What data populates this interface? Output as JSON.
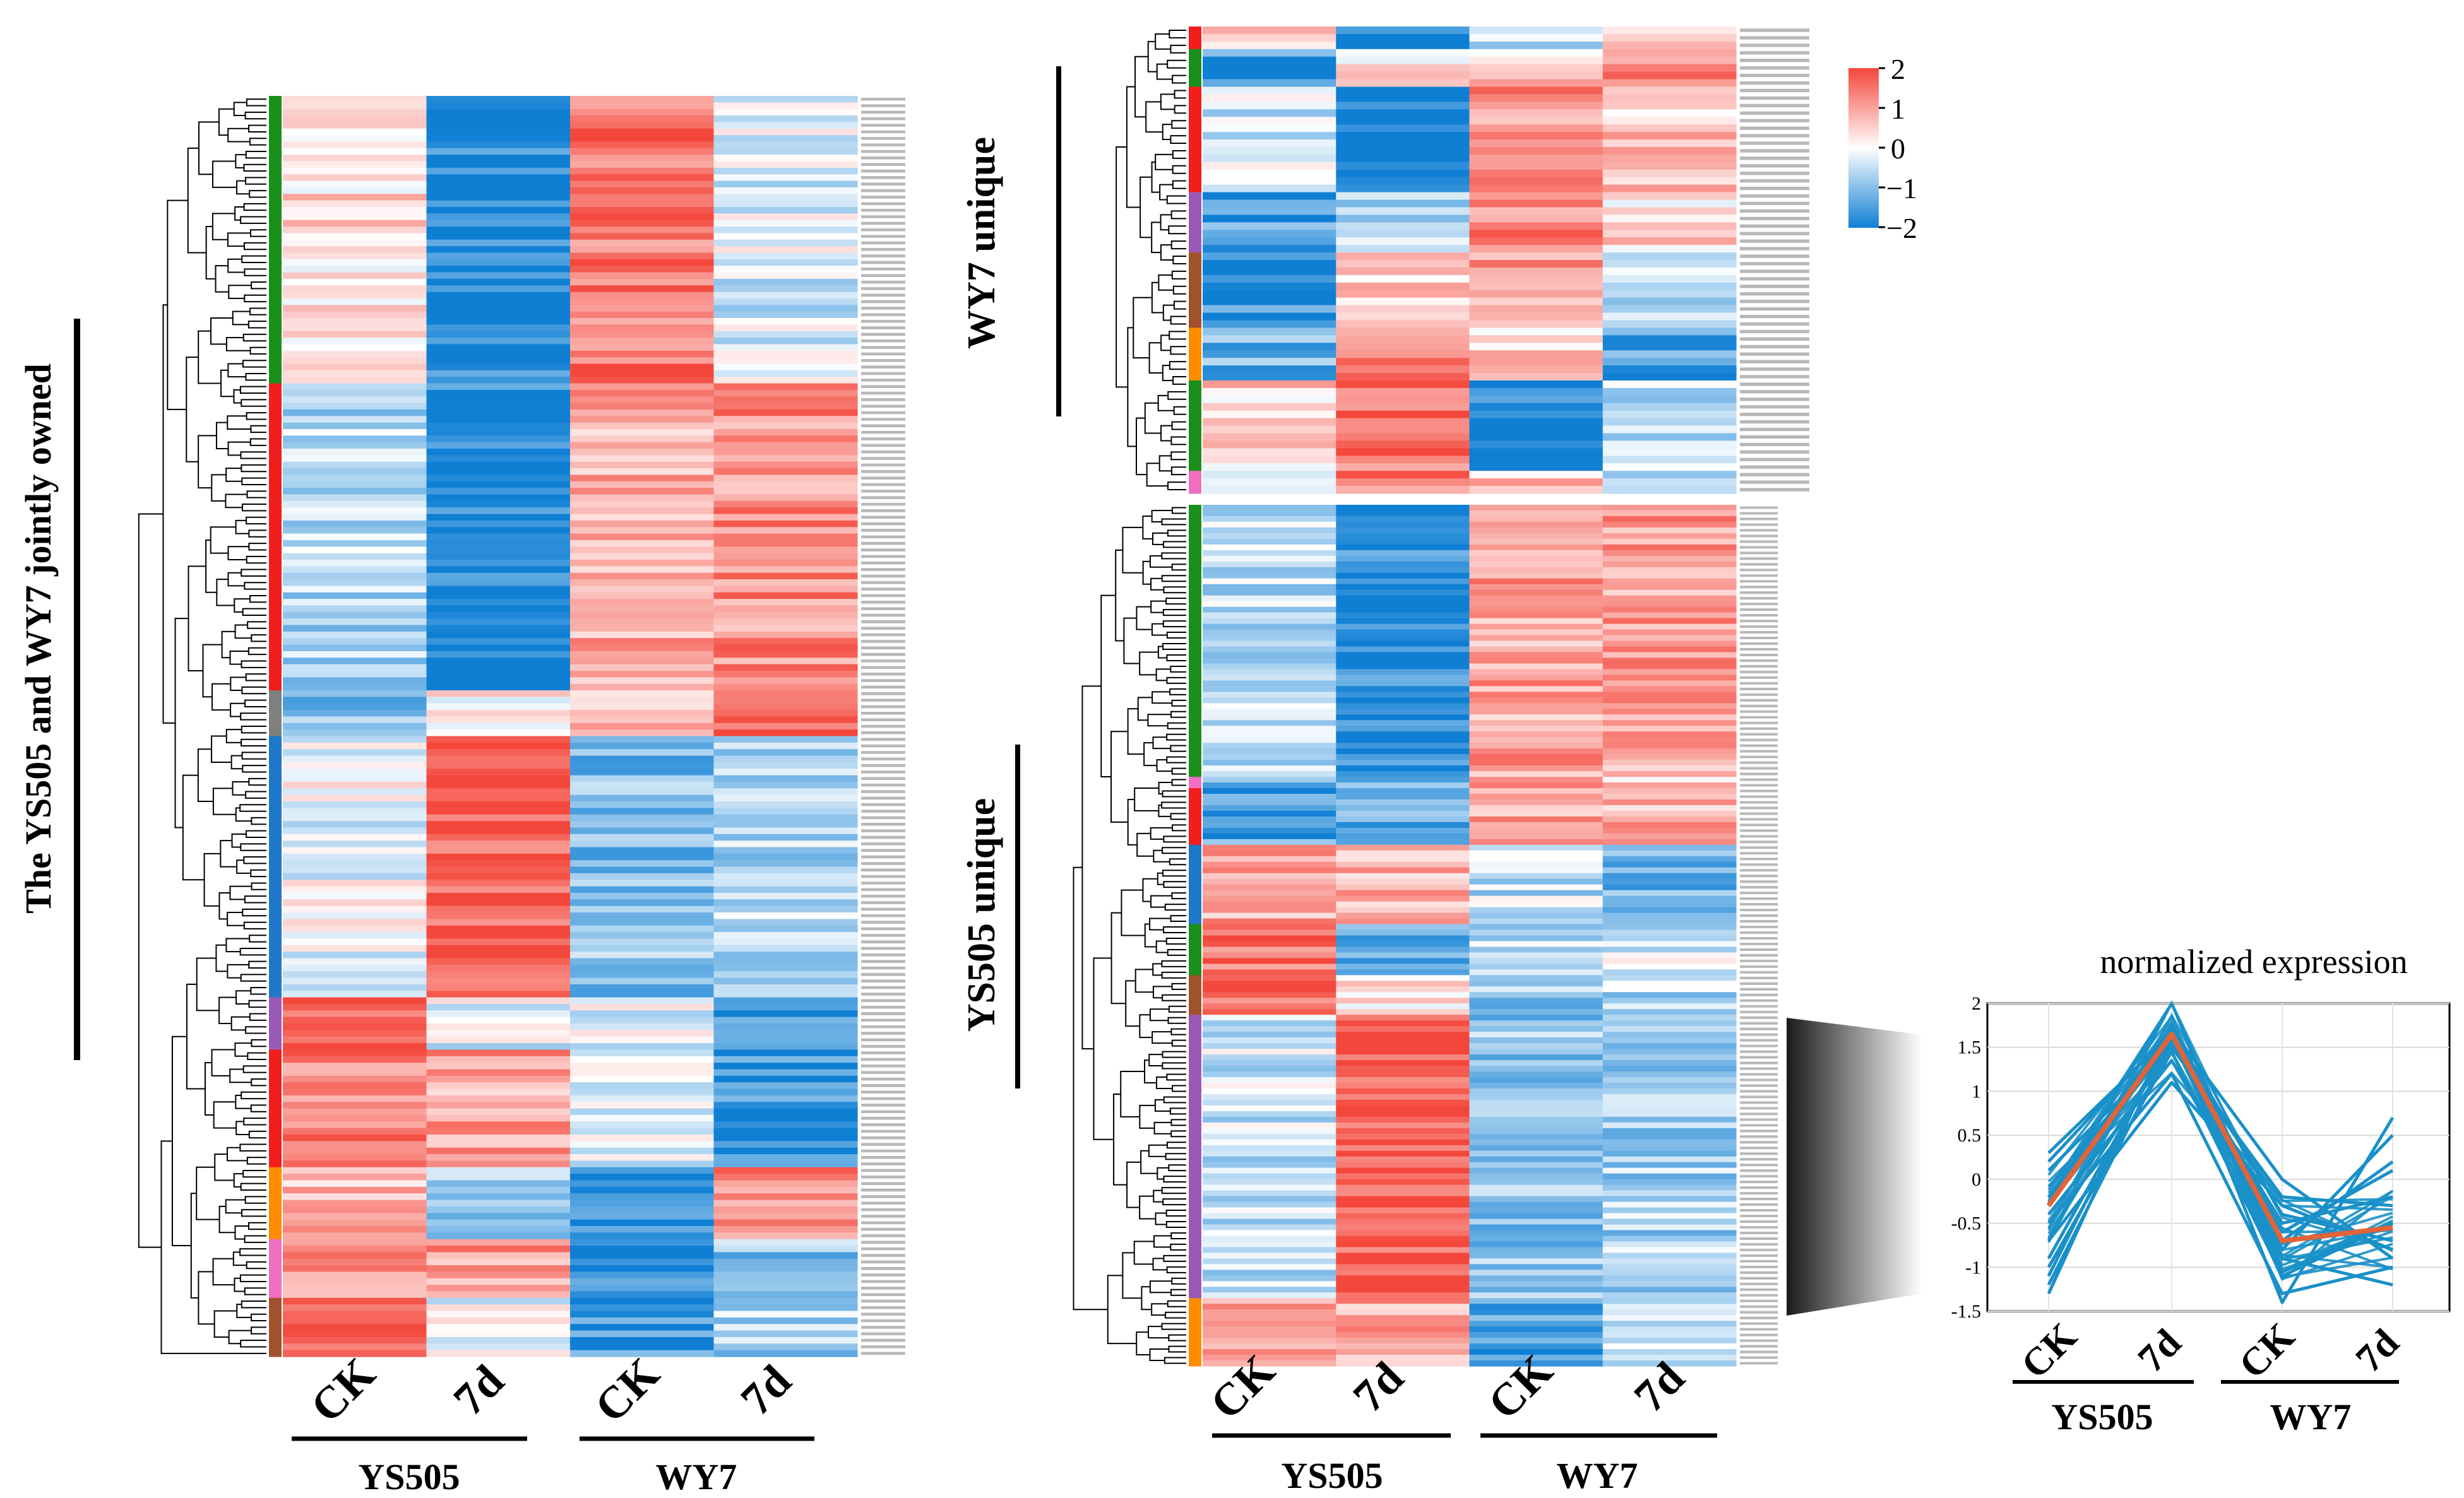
{
  "colors": {
    "high": "#f4473b",
    "mid": "#ffffff",
    "low": "#0f7fd4",
    "cluster_green": "#1a8f1a",
    "cluster_red": "#f21d1d",
    "cluster_gray": "#7f7f7f",
    "cluster_blue": "#1f78c8",
    "cluster_purple": "#9b59b6",
    "cluster_orange": "#ff8c00",
    "cluster_pink": "#f06fc0",
    "cluster_brown": "#a0522d",
    "profile_line": "#1a90c8",
    "mean_line": "#e0643a"
  },
  "left_panel": {
    "title": "The YS505 and WY7 jointly owned",
    "column_labels": [
      "CK",
      "7d",
      "CK",
      "7d"
    ],
    "group_labels": [
      "YS505",
      "WY7"
    ]
  },
  "right_top_panel": {
    "title": "WY7 unique"
  },
  "right_bottom_panel": {
    "title": "YS505 unique",
    "column_labels": [
      "CK",
      "7d",
      "CK",
      "7d"
    ],
    "group_labels": [
      "YS505",
      "WY7"
    ]
  },
  "colorbar": {
    "ticks": [
      "2",
      "1",
      "0",
      "−1",
      "−2"
    ]
  },
  "chart_data": [
    {
      "type": "heatmap",
      "name": "jointly-owned",
      "title": "The YS505 and WY7 jointly owned",
      "columns": [
        "YS505 CK",
        "YS505 7d",
        "WY7 CK",
        "WY7 7d"
      ],
      "value_range": [
        -2,
        2
      ],
      "row_clusters": [
        {
          "color": "green",
          "rows": 44,
          "profile": [
            0.4,
            -1.9,
            1.5,
            -0.3
          ]
        },
        {
          "color": "red",
          "rows": 47,
          "profile": [
            -0.6,
            -1.9,
            0.9,
            1.2
          ]
        },
        {
          "color": "gray",
          "rows": 7,
          "profile": [
            -1.0,
            0.1,
            0.8,
            1.6
          ]
        },
        {
          "color": "blue",
          "rows": 40,
          "profile": [
            -0.1,
            1.8,
            -1.0,
            -0.6
          ]
        },
        {
          "color": "purple",
          "rows": 8,
          "profile": [
            1.6,
            -0.2,
            -0.2,
            -1.5
          ]
        },
        {
          "color": "red",
          "rows": 18,
          "profile": [
            1.3,
            1.0,
            -0.2,
            -1.6
          ]
        },
        {
          "color": "orange",
          "rows": 11,
          "profile": [
            0.8,
            -0.9,
            -1.7,
            1.2
          ]
        },
        {
          "color": "pink",
          "rows": 9,
          "profile": [
            1.0,
            1.1,
            -1.6,
            -0.9
          ]
        },
        {
          "color": "brown",
          "rows": 9,
          "profile": [
            1.7,
            -0.2,
            -1.6,
            -0.7
          ]
        }
      ]
    },
    {
      "type": "heatmap",
      "name": "WY7-unique",
      "title": "WY7 unique",
      "columns": [
        "YS505 CK",
        "YS505 7d",
        "WY7 CK",
        "WY7 7d"
      ],
      "value_range": [
        -2,
        2
      ],
      "row_clusters": [
        {
          "color": "red",
          "rows": 3,
          "profile": [
            0.8,
            -1.8,
            -0.5,
            0.8
          ]
        },
        {
          "color": "green",
          "rows": 5,
          "profile": [
            -1.6,
            0.2,
            0.5,
            1.4
          ]
        },
        {
          "color": "red",
          "rows": 14,
          "profile": [
            -0.4,
            -1.9,
            1.1,
            0.6
          ]
        },
        {
          "color": "purple",
          "rows": 8,
          "profile": [
            -1.5,
            -0.7,
            1.3,
            0.4
          ]
        },
        {
          "color": "brown",
          "rows": 10,
          "profile": [
            -1.7,
            0.5,
            1.1,
            -0.4
          ]
        },
        {
          "color": "orange",
          "rows": 7,
          "profile": [
            -1.2,
            1.4,
            0.5,
            -1.5
          ]
        },
        {
          "color": "green",
          "rows": 12,
          "profile": [
            0.5,
            1.5,
            -1.9,
            -0.4
          ]
        },
        {
          "color": "pink",
          "rows": 3,
          "profile": [
            -0.8,
            1.5,
            0.6,
            -0.3
          ]
        }
      ]
    },
    {
      "type": "heatmap",
      "name": "YS505-unique",
      "title": "YS505 unique",
      "columns": [
        "YS505 CK",
        "YS505 7d",
        "WY7 CK",
        "WY7 7d"
      ],
      "value_range": [
        -2,
        2
      ],
      "row_clusters": [
        {
          "color": "green",
          "rows": 48,
          "profile": [
            -0.5,
            -1.8,
            1.0,
            1.0
          ]
        },
        {
          "color": "pink",
          "rows": 2,
          "profile": [
            -1.0,
            -1.2,
            1.3,
            0.5
          ]
        },
        {
          "color": "red",
          "rows": 10,
          "profile": [
            -1.4,
            -1.2,
            1.0,
            0.8
          ]
        },
        {
          "color": "blue",
          "rows": 14,
          "profile": [
            0.9,
            0.8,
            -0.5,
            -1.2
          ]
        },
        {
          "color": "green",
          "rows": 9,
          "profile": [
            1.5,
            -1.3,
            -0.5,
            -0.3
          ]
        },
        {
          "color": "brown",
          "rows": 7,
          "profile": [
            1.5,
            0.3,
            -0.8,
            -0.6
          ]
        },
        {
          "color": "purple",
          "rows": 50,
          "profile": [
            -0.4,
            1.8,
            -0.9,
            -0.7
          ]
        },
        {
          "color": "orange",
          "rows": 12,
          "profile": [
            1.0,
            0.9,
            -1.5,
            -0.6
          ]
        }
      ]
    },
    {
      "type": "line",
      "name": "normalized-expression-profile",
      "title": "normalized expression",
      "categories": [
        "CK",
        "7d",
        "CK",
        "7d"
      ],
      "groups": [
        "YS505",
        "WY7"
      ],
      "ylim": [
        -1.5,
        2
      ],
      "yticks": [
        "2",
        "1.5",
        "1",
        "0.5",
        "0",
        "-0.5",
        "-1",
        "-1.5"
      ],
      "mean_series": {
        "name": "mean",
        "values": [
          -0.3,
          1.65,
          -0.7,
          -0.55
        ]
      },
      "series": [
        {
          "name": "g1",
          "values": [
            -1.3,
            1.75,
            -1.4,
            0.7
          ]
        },
        {
          "name": "g2",
          "values": [
            -1.1,
            1.7,
            -0.8,
            0.5
          ]
        },
        {
          "name": "g3",
          "values": [
            -0.9,
            1.6,
            -0.6,
            0.1
          ]
        },
        {
          "name": "g4",
          "values": [
            -0.5,
            1.2,
            -1.3,
            -1.0
          ]
        },
        {
          "name": "g5",
          "values": [
            -0.2,
            1.7,
            -0.4,
            -0.7
          ]
        },
        {
          "name": "g6",
          "values": [
            0.1,
            1.5,
            -0.2,
            -0.3
          ]
        },
        {
          "name": "g7",
          "values": [
            0.3,
            1.65,
            -0.9,
            -1.2
          ]
        },
        {
          "name": "g8",
          "values": [
            -0.7,
            1.1,
            -0.3,
            -0.8
          ]
        },
        {
          "name": "g9",
          "values": [
            -1.0,
            1.45,
            -1.1,
            -0.5
          ]
        },
        {
          "name": "g10",
          "values": [
            0.2,
            1.7,
            0.0,
            -0.9
          ]
        },
        {
          "name": "g11",
          "values": [
            -0.4,
            1.35,
            -0.7,
            0.2
          ]
        },
        {
          "name": "g12",
          "values": [
            -1.2,
            1.55,
            -0.5,
            -0.2
          ]
        }
      ]
    }
  ]
}
